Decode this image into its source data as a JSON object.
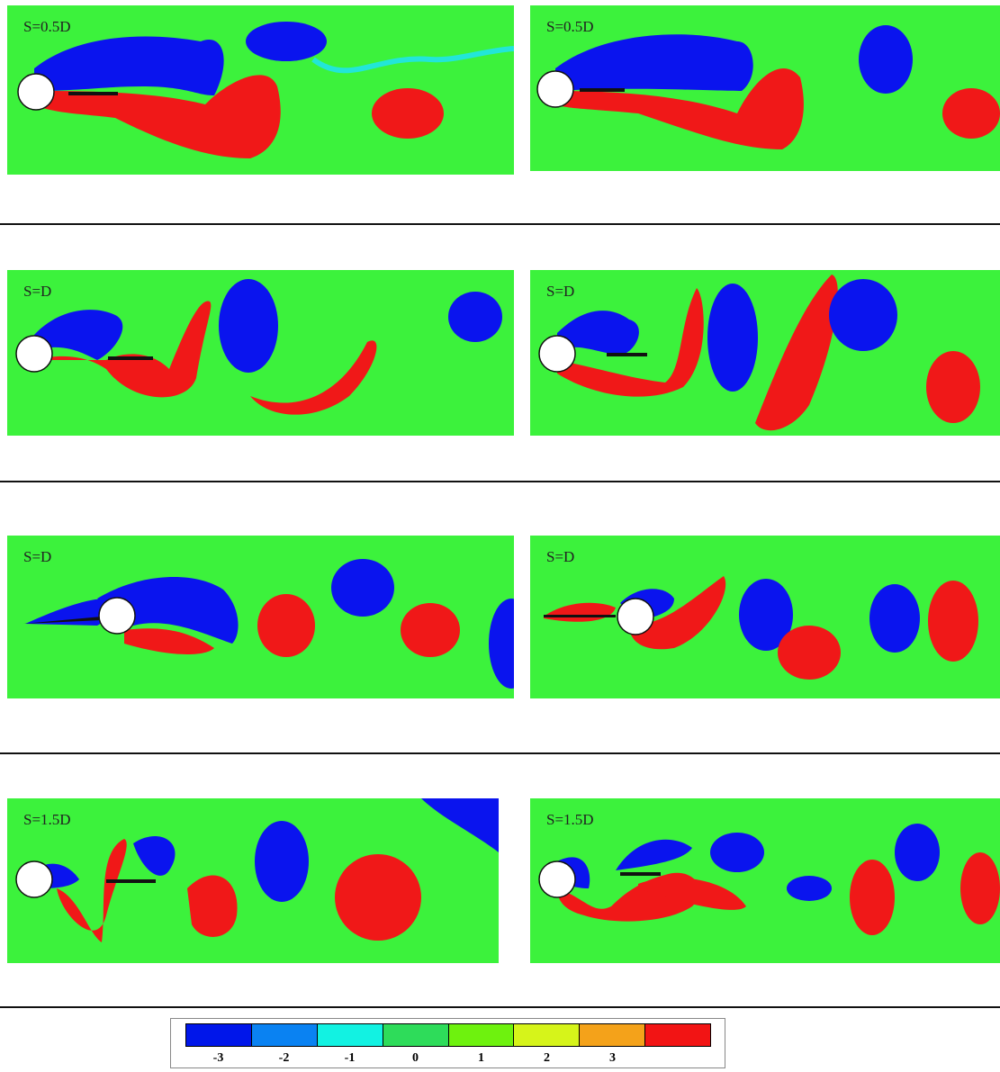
{
  "colors": {
    "background_green": "#3cf23c",
    "negative_vortex": "#0a14ee",
    "positive_vortex": "#f01818",
    "cylinder": "#ffffff"
  },
  "panels": [
    {
      "label": "S=0.5D",
      "row": 1,
      "column": "left"
    },
    {
      "label": "S=0.5D",
      "row": 1,
      "column": "right"
    },
    {
      "label": "S=D",
      "row": 2,
      "column": "left"
    },
    {
      "label": "S=D",
      "row": 2,
      "column": "right"
    },
    {
      "label": "S=D",
      "row": 3,
      "column": "left"
    },
    {
      "label": "S=D",
      "row": 3,
      "column": "right"
    },
    {
      "label": "S=1.5D",
      "row": 4,
      "column": "left"
    },
    {
      "label": "S=1.5D",
      "row": 4,
      "column": "right"
    }
  ],
  "colorbar": {
    "segment_colors": [
      "#0016ea",
      "#0a82f2",
      "#12f2e2",
      "#2edc5a",
      "#6ef20e",
      "#d6f41a",
      "#f4a21a",
      "#f21414"
    ],
    "ticks": [
      "-3",
      "-2",
      "-1",
      "0",
      "1",
      "2",
      "3"
    ]
  }
}
